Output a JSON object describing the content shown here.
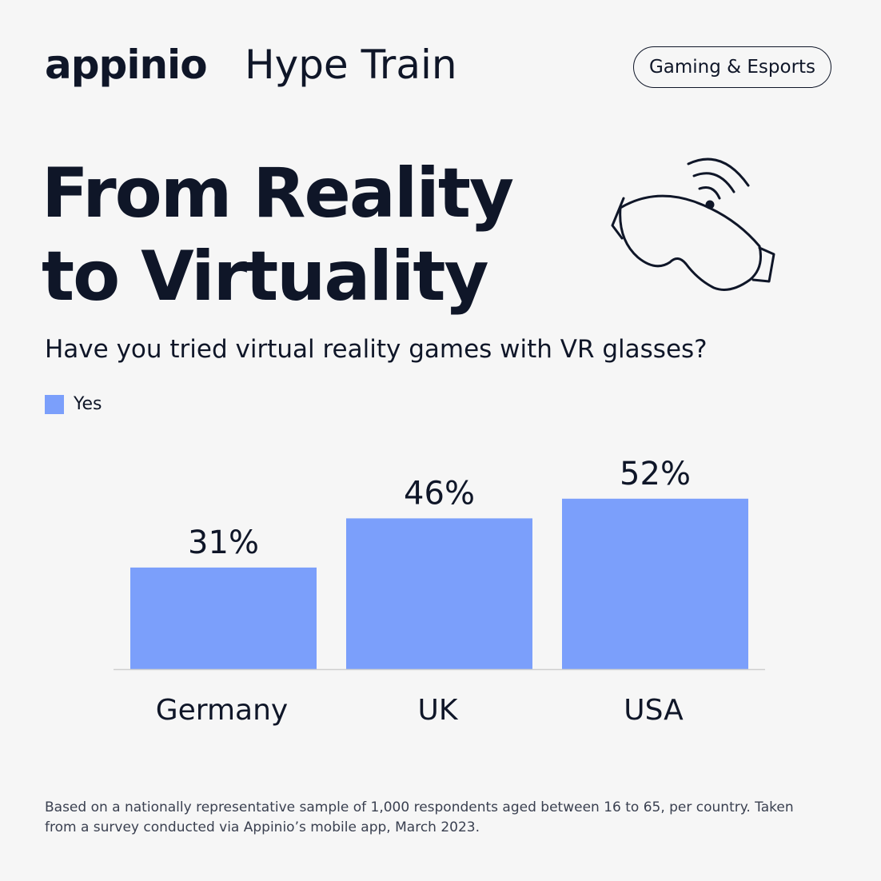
{
  "header": {
    "logo": "appinio",
    "series_name": "Hype Train",
    "badge": "Gaming & Esports"
  },
  "headline": {
    "line1": "From Reality",
    "line2": "to Virtuality"
  },
  "icon": "vr-glasses-wifi-icon",
  "colors": {
    "background": "#f6f6f6",
    "text": "#0f1628",
    "bar": "#7b9ffb",
    "baseline": "#cfcfcf"
  },
  "chart_data": {
    "type": "bar",
    "title": "Have you tried virtual reality games with VR glasses?",
    "categories": [
      "Germany",
      "UK",
      "USA"
    ],
    "series": [
      {
        "name": "Yes",
        "values": [
          31,
          46,
          52
        ],
        "labels": [
          "31%",
          "46%",
          "52%"
        ]
      }
    ],
    "ylim": [
      0,
      60
    ],
    "grid": false,
    "legend_position": "top-left"
  },
  "footnote": "Based on a nationally representative sample of 1,000 respondents aged between 16 to 65, per country. Taken from a survey conducted via Appinio’s mobile app, March 2023."
}
